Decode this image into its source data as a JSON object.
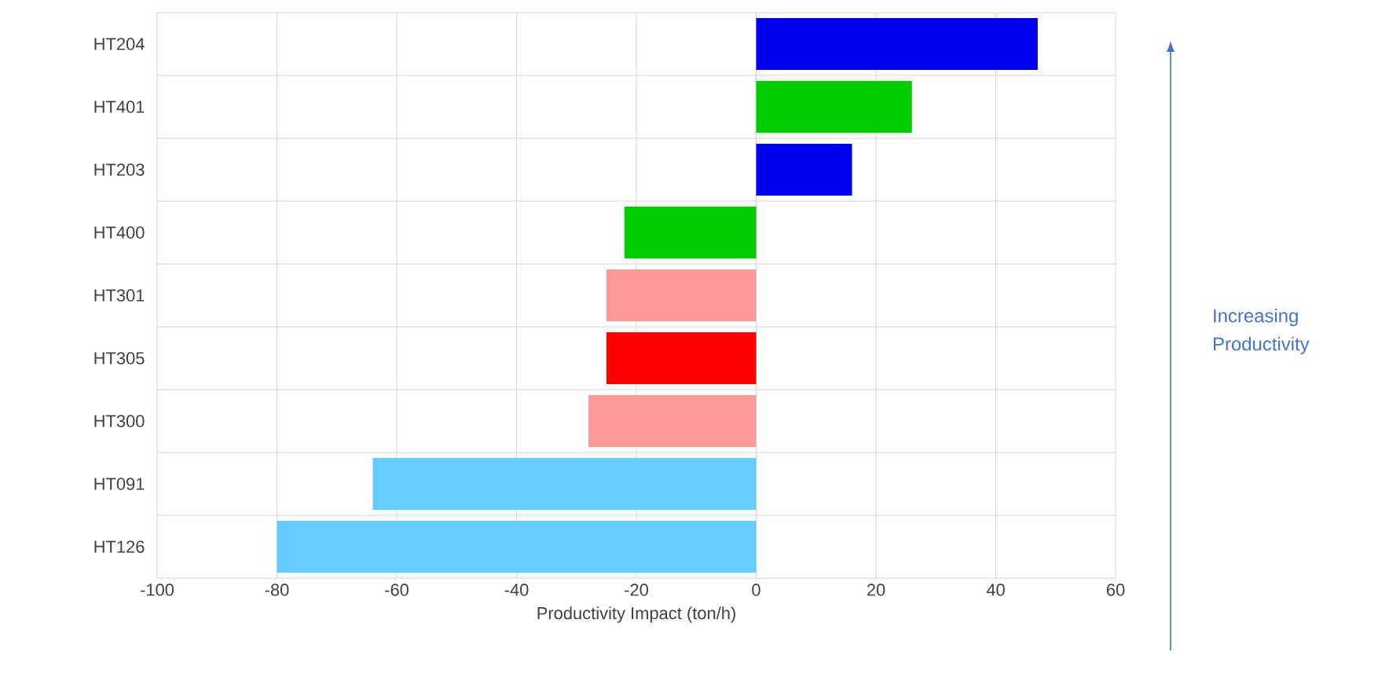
{
  "chart_data": {
    "type": "bar",
    "orientation": "horizontal",
    "xlabel": "Productivity Impact (ton/h)",
    "categories": [
      "HT204",
      "HT401",
      "HT203",
      "HT400",
      "HT301",
      "HT305",
      "HT300",
      "HT091",
      "HT126"
    ],
    "series": [
      {
        "color": "#66ccff",
        "values": [
          null,
          null,
          null,
          null,
          null,
          null,
          null,
          -64,
          -80
        ]
      },
      {
        "color": "#ff9999",
        "values": [
          null,
          null,
          null,
          null,
          -25,
          null,
          -28,
          null,
          null
        ]
      },
      {
        "color": "#0000ee",
        "values": [
          47,
          null,
          16,
          null,
          null,
          null,
          null,
          null,
          null
        ]
      },
      {
        "color": "#00cc00",
        "values": [
          null,
          26,
          null,
          -22,
          null,
          null,
          null,
          null,
          null
        ]
      },
      {
        "color": "#ff0000",
        "values": [
          null,
          null,
          null,
          null,
          null,
          -25,
          null,
          null,
          null
        ]
      }
    ],
    "xlim": [
      -100,
      60
    ],
    "xticks": [
      -100,
      -80,
      -60,
      -40,
      -20,
      0,
      20,
      40,
      60
    ],
    "grid": true,
    "annotations": [
      "Increasing Productivity"
    ]
  }
}
